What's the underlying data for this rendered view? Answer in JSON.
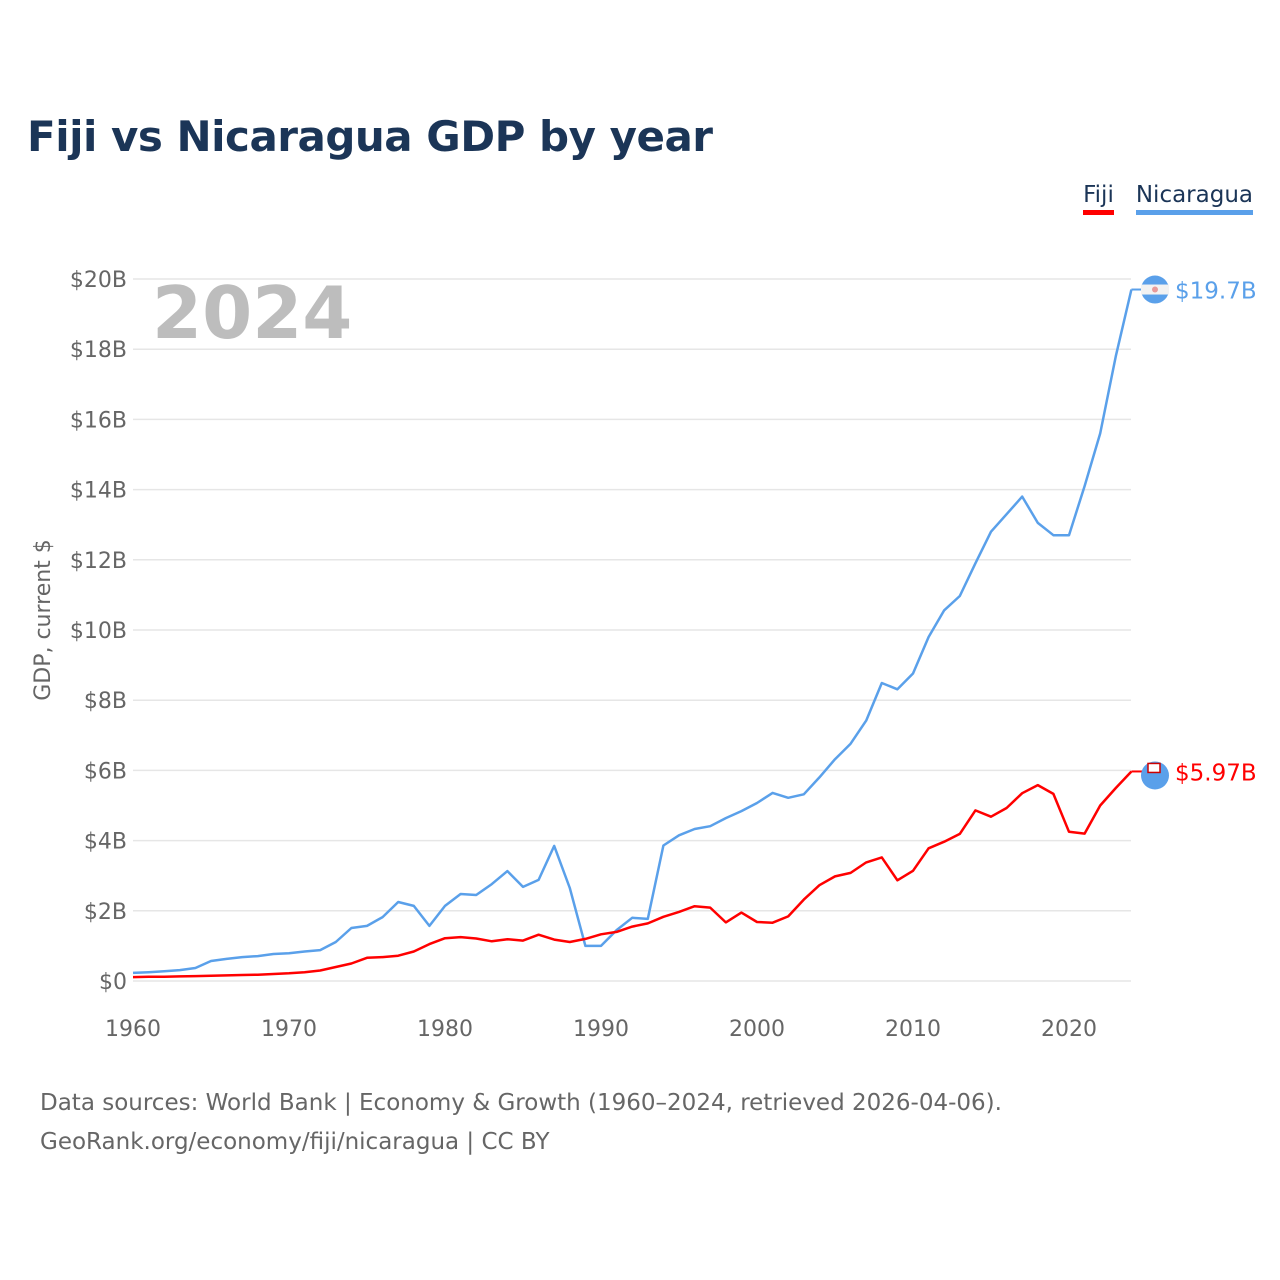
{
  "title": "Fiji vs Nicaragua GDP by year",
  "legend": [
    {
      "label": "Fiji",
      "color": "#ff0000"
    },
    {
      "label": "Nicaragua",
      "color": "#5aa0ea"
    }
  ],
  "year_watermark": "2024",
  "footer": {
    "line1": "Data sources: World Bank | Economy & Growth (1960–2024, retrieved 2026-04-06).",
    "line2": "GeoRank.org/economy/fiji/nicaragua | CC BY"
  },
  "chart_data": {
    "type": "line",
    "title": "Fiji vs Nicaragua GDP by year",
    "xlabel": "",
    "ylabel": "GDP, current $",
    "xlim": [
      1960,
      2024
    ],
    "ylim": [
      0,
      20
    ],
    "grid": true,
    "legend_position": "top-right",
    "x_ticks": [
      "1960",
      "1970",
      "1980",
      "1990",
      "2000",
      "2010",
      "2020"
    ],
    "y_ticks": [
      "$0",
      "$2B",
      "$4B",
      "$6B",
      "$8B",
      "$10B",
      "$12B",
      "$14B",
      "$16B",
      "$18B",
      "$20B"
    ],
    "x": [
      1960,
      1961,
      1962,
      1963,
      1964,
      1965,
      1966,
      1967,
      1968,
      1969,
      1970,
      1971,
      1972,
      1973,
      1974,
      1975,
      1976,
      1977,
      1978,
      1979,
      1980,
      1981,
      1982,
      1983,
      1984,
      1985,
      1986,
      1987,
      1988,
      1989,
      1990,
      1991,
      1992,
      1993,
      1994,
      1995,
      1996,
      1997,
      1998,
      1999,
      2000,
      2001,
      2002,
      2003,
      2004,
      2005,
      2006,
      2007,
      2008,
      2009,
      2010,
      2011,
      2012,
      2013,
      2014,
      2015,
      2016,
      2017,
      2018,
      2019,
      2020,
      2021,
      2022,
      2023,
      2024
    ],
    "series": [
      {
        "name": "Nicaragua",
        "color": "#5aa0ea",
        "end_label": "$19.7B",
        "values": [
          0.23,
          0.25,
          0.28,
          0.31,
          0.37,
          0.57,
          0.63,
          0.68,
          0.71,
          0.77,
          0.79,
          0.84,
          0.88,
          1.11,
          1.51,
          1.57,
          1.82,
          2.25,
          2.14,
          1.57,
          2.14,
          2.48,
          2.45,
          2.76,
          3.13,
          2.68,
          2.88,
          3.85,
          2.65,
          1.0,
          1.0,
          1.45,
          1.8,
          1.77,
          3.86,
          4.15,
          4.33,
          4.41,
          4.64,
          4.84,
          5.07,
          5.36,
          5.22,
          5.32,
          5.8,
          6.32,
          6.76,
          7.42,
          8.49,
          8.31,
          8.76,
          9.8,
          10.56,
          10.97,
          11.9,
          12.8,
          13.3,
          13.8,
          13.05,
          12.7,
          12.7,
          14.1,
          15.6,
          17.8,
          19.7
        ]
      },
      {
        "name": "Fiji",
        "color": "#ff0000",
        "end_label": "$5.97B",
        "values": [
          0.11,
          0.12,
          0.12,
          0.13,
          0.14,
          0.15,
          0.16,
          0.17,
          0.18,
          0.2,
          0.22,
          0.25,
          0.3,
          0.4,
          0.5,
          0.66,
          0.68,
          0.72,
          0.84,
          1.05,
          1.22,
          1.25,
          1.21,
          1.13,
          1.19,
          1.15,
          1.32,
          1.18,
          1.11,
          1.2,
          1.33,
          1.4,
          1.55,
          1.64,
          1.83,
          1.97,
          2.13,
          2.09,
          1.67,
          1.95,
          1.68,
          1.66,
          1.84,
          2.32,
          2.73,
          2.98,
          3.08,
          3.38,
          3.52,
          2.87,
          3.14,
          3.78,
          3.97,
          4.19,
          4.86,
          4.68,
          4.93,
          5.35,
          5.58,
          5.33,
          4.25,
          4.2,
          5.0,
          5.5,
          5.97
        ]
      }
    ]
  }
}
